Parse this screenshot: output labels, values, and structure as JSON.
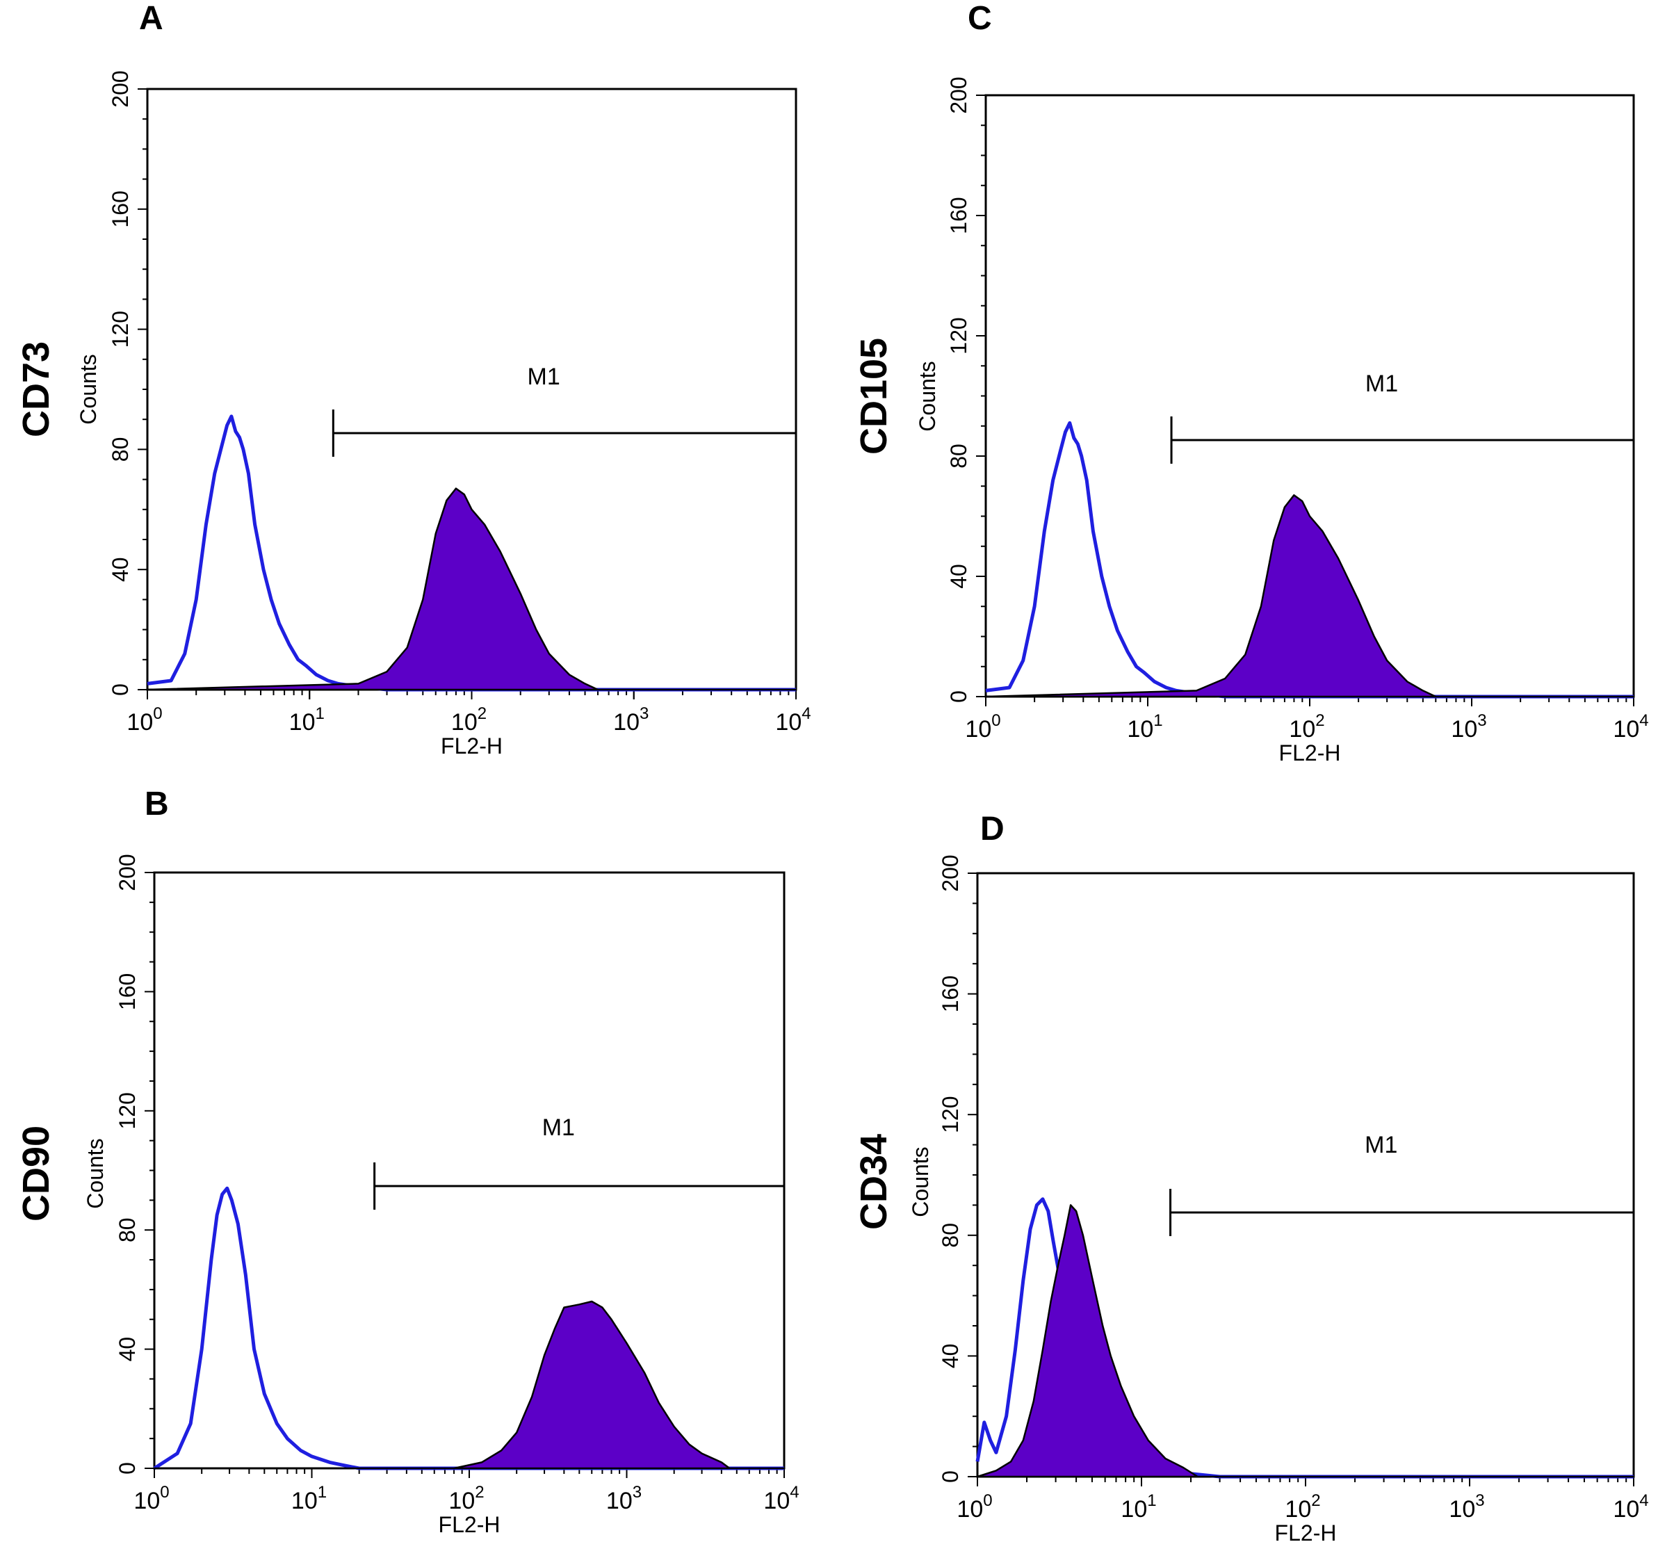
{
  "chart_data": [
    {
      "type": "histogram",
      "panel": "A",
      "marker": "CD73",
      "xlabel": "FL2-H",
      "ylabel": "Counts",
      "xscale": "log",
      "xlim": [
        1,
        10000
      ],
      "ylim": [
        0,
        200
      ],
      "yticks": [
        "0",
        "40",
        "80",
        "120",
        "160",
        "200"
      ],
      "xticks": [
        {
          "base": "10",
          "exp": "0"
        },
        {
          "base": "10",
          "exp": "1"
        },
        {
          "base": "10",
          "exp": "2"
        },
        {
          "base": "10",
          "exp": "3"
        },
        {
          "base": "10",
          "exp": "4"
        }
      ],
      "gate": {
        "label": "M1",
        "from": 14,
        "to": 10000
      },
      "series": [
        {
          "role": "control",
          "style": "outline",
          "color": "#1f1fe0",
          "x": [
            1,
            1.4,
            1.7,
            2.0,
            2.3,
            2.6,
            2.9,
            3.1,
            3.3,
            3.5,
            3.7,
            3.9,
            4.2,
            4.6,
            5.2,
            5.8,
            6.5,
            7.5,
            8.5,
            9.5,
            11,
            13,
            15,
            20,
            30,
            100,
            10000
          ],
          "y": [
            2,
            3,
            12,
            30,
            55,
            72,
            82,
            88,
            91,
            86,
            84,
            80,
            72,
            55,
            40,
            30,
            22,
            15,
            10,
            8,
            5,
            3,
            2,
            1,
            0,
            0,
            0
          ]
        },
        {
          "role": "stained",
          "style": "filled",
          "color": "#5c00c7",
          "x": [
            1,
            20,
            30,
            40,
            50,
            60,
            70,
            80,
            90,
            100,
            120,
            150,
            200,
            250,
            300,
            400,
            500,
            600,
            1000,
            10000
          ],
          "y": [
            0,
            2,
            6,
            14,
            30,
            52,
            63,
            67,
            65,
            60,
            55,
            46,
            32,
            20,
            12,
            5,
            2,
            0,
            0,
            0
          ]
        }
      ]
    },
    {
      "type": "histogram",
      "panel": "B",
      "marker": "CD90",
      "xlabel": "FL2-H",
      "ylabel": "Counts",
      "xscale": "log",
      "xlim": [
        1,
        10000
      ],
      "ylim": [
        0,
        200
      ],
      "yticks": [
        "0",
        "40",
        "80",
        "120",
        "160",
        "200"
      ],
      "xticks": [
        {
          "base": "10",
          "exp": "0"
        },
        {
          "base": "10",
          "exp": "1"
        },
        {
          "base": "10",
          "exp": "2"
        },
        {
          "base": "10",
          "exp": "3"
        },
        {
          "base": "10",
          "exp": "4"
        }
      ],
      "gate": {
        "label": "M1",
        "from": 25,
        "to": 10000
      },
      "series": [
        {
          "role": "control",
          "style": "outline",
          "color": "#1f1fe0",
          "x": [
            1,
            1.4,
            1.7,
            2.0,
            2.3,
            2.5,
            2.7,
            2.9,
            3.1,
            3.4,
            3.8,
            4.3,
            5.0,
            6.0,
            7.0,
            8.5,
            10,
            13,
            16,
            20,
            25,
            100,
            10000
          ],
          "y": [
            0,
            5,
            15,
            40,
            70,
            85,
            92,
            94,
            90,
            82,
            65,
            40,
            25,
            15,
            10,
            6,
            4,
            2,
            1,
            0,
            0,
            0,
            0
          ]
        },
        {
          "role": "stained",
          "style": "filled",
          "color": "#5c00c7",
          "x": [
            1,
            80,
            120,
            160,
            200,
            250,
            300,
            350,
            400,
            500,
            600,
            700,
            800,
            1000,
            1300,
            1600,
            2000,
            2500,
            3000,
            4000,
            4500,
            10000
          ],
          "y": [
            0,
            0,
            2,
            6,
            12,
            24,
            38,
            47,
            54,
            55,
            56,
            54,
            50,
            42,
            32,
            22,
            14,
            8,
            5,
            2,
            0,
            0
          ]
        }
      ]
    },
    {
      "type": "histogram",
      "panel": "C",
      "marker": "CD105",
      "xlabel": "FL2-H",
      "ylabel": "Counts",
      "xscale": "log",
      "xlim": [
        1,
        10000
      ],
      "ylim": [
        0,
        200
      ],
      "yticks": [
        "0",
        "40",
        "80",
        "120",
        "160",
        "200"
      ],
      "xticks": [
        {
          "base": "10",
          "exp": "0"
        },
        {
          "base": "10",
          "exp": "1"
        },
        {
          "base": "10",
          "exp": "2"
        },
        {
          "base": "10",
          "exp": "3"
        },
        {
          "base": "10",
          "exp": "4"
        }
      ],
      "gate": {
        "label": "M1",
        "from": 14,
        "to": 10000
      },
      "series": [
        {
          "role": "control",
          "style": "outline",
          "color": "#1f1fe0",
          "x": [
            1,
            1.4,
            1.7,
            2.0,
            2.3,
            2.6,
            2.9,
            3.1,
            3.3,
            3.5,
            3.7,
            3.9,
            4.2,
            4.6,
            5.2,
            5.8,
            6.5,
            7.5,
            8.5,
            9.5,
            11,
            13,
            15,
            20,
            30,
            100,
            10000
          ],
          "y": [
            2,
            3,
            12,
            30,
            55,
            72,
            82,
            88,
            91,
            86,
            84,
            80,
            72,
            55,
            40,
            30,
            22,
            15,
            10,
            8,
            5,
            3,
            2,
            1,
            0,
            0,
            0
          ]
        },
        {
          "role": "stained",
          "style": "filled",
          "color": "#5c00c7",
          "x": [
            1,
            20,
            30,
            40,
            50,
            60,
            70,
            80,
            90,
            100,
            120,
            150,
            200,
            250,
            300,
            400,
            500,
            600,
            1000,
            10000
          ],
          "y": [
            0,
            2,
            6,
            14,
            30,
            52,
            63,
            67,
            65,
            60,
            55,
            46,
            32,
            20,
            12,
            5,
            2,
            0,
            0,
            0
          ]
        }
      ]
    },
    {
      "type": "histogram",
      "panel": "D",
      "marker": "CD34",
      "xlabel": "FL2-H",
      "ylabel": "Counts",
      "xscale": "log",
      "xlim": [
        1,
        10000
      ],
      "ylim": [
        0,
        200
      ],
      "yticks": [
        "0",
        "40",
        "80",
        "120",
        "160",
        "200"
      ],
      "xticks": [
        {
          "base": "10",
          "exp": "0"
        },
        {
          "base": "10",
          "exp": "1"
        },
        {
          "base": "10",
          "exp": "2"
        },
        {
          "base": "10",
          "exp": "3"
        },
        {
          "base": "10",
          "exp": "4"
        }
      ],
      "gate": {
        "label": "M1",
        "from": 15,
        "to": 10000
      },
      "series": [
        {
          "role": "control",
          "style": "outline",
          "color": "#1f1fe0",
          "x": [
            1,
            1.1,
            1.2,
            1.3,
            1.5,
            1.7,
            1.9,
            2.1,
            2.3,
            2.5,
            2.7,
            2.9,
            3.2,
            3.6,
            4.0,
            4.5,
            5.0,
            6.0,
            7.0,
            8.0,
            10,
            12,
            15,
            20,
            30,
            10000
          ],
          "y": [
            5,
            18,
            12,
            8,
            20,
            42,
            65,
            82,
            90,
            92,
            88,
            78,
            65,
            50,
            40,
            32,
            25,
            15,
            10,
            6,
            4,
            3,
            2,
            1,
            0,
            0
          ]
        },
        {
          "role": "stained",
          "style": "filled",
          "color": "#5c00c7",
          "x": [
            1,
            1.3,
            1.6,
            1.9,
            2.2,
            2.5,
            2.8,
            3.1,
            3.4,
            3.7,
            4.0,
            4.4,
            5.0,
            5.8,
            6.5,
            7.5,
            9.0,
            11,
            14,
            18,
            22,
            10000
          ],
          "y": [
            0,
            2,
            5,
            12,
            25,
            42,
            58,
            70,
            80,
            90,
            88,
            80,
            66,
            50,
            40,
            30,
            20,
            12,
            6,
            3,
            0,
            0
          ]
        }
      ]
    }
  ]
}
